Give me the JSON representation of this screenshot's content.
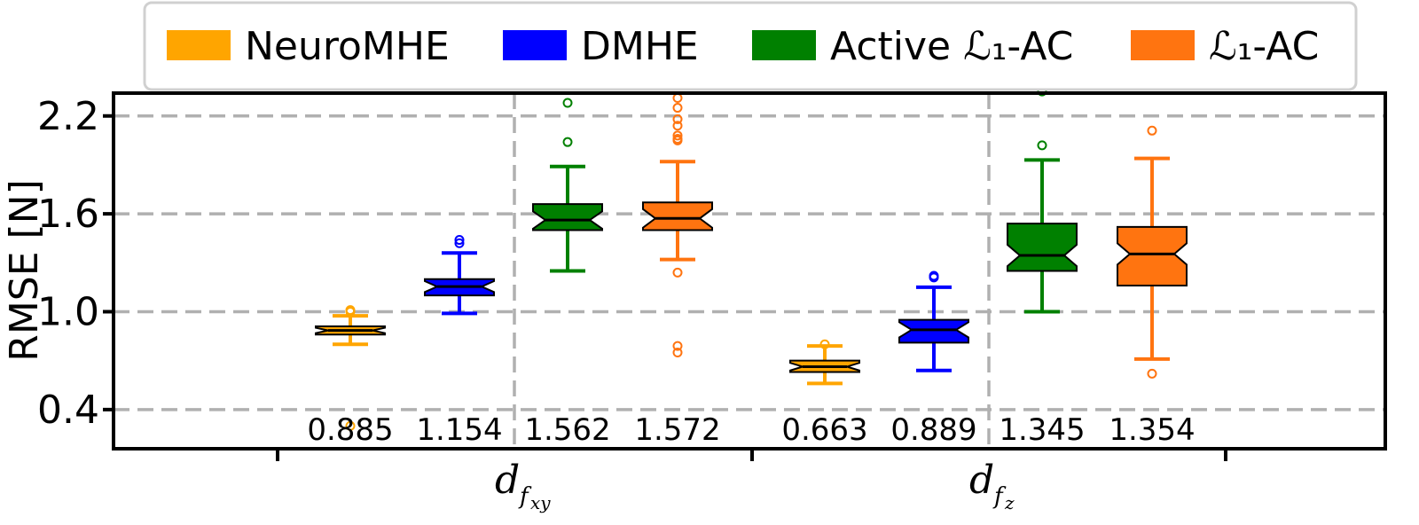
{
  "chart_data": {
    "type": "box",
    "title": "",
    "xlabel": "",
    "ylabel": "RMSE [N]",
    "ylim": [
      0.16,
      2.34
    ],
    "yticks": [
      0.4,
      1.0,
      1.6,
      2.2
    ],
    "ytick_labels": [
      "0.4",
      "1.0",
      "1.6",
      "2.2"
    ],
    "grid": true,
    "legend_position": "top",
    "categories": [
      {
        "main": "d",
        "sub": "f",
        "subsub": "xy"
      },
      {
        "main": "d",
        "sub": "f",
        "subsub": "z"
      }
    ],
    "legend": [
      {
        "name": "NeuroMHE",
        "color": "#FFA500"
      },
      {
        "name": "DMHE",
        "color": "#0000FF"
      },
      {
        "name": "Active ℒ₁-AC",
        "color": "#008000"
      },
      {
        "name": "ℒ₁-AC",
        "color": "#FF7410"
      }
    ],
    "series": [
      {
        "name": "NeuroMHE",
        "color": "#FFA500",
        "boxes": [
          {
            "whislo": 0.8,
            "q1": 0.86,
            "med": 0.885,
            "q3": 0.91,
            "whishi": 0.975,
            "fliers": [
              1.0,
              1.01,
              0.3
            ],
            "median_label": "0.885"
          },
          {
            "whislo": 0.56,
            "q1": 0.63,
            "med": 0.663,
            "q3": 0.7,
            "whishi": 0.79,
            "fliers": [
              0.8
            ],
            "median_label": "0.663"
          }
        ]
      },
      {
        "name": "DMHE",
        "color": "#0000FF",
        "boxes": [
          {
            "whislo": 0.99,
            "q1": 1.1,
            "med": 1.154,
            "q3": 1.2,
            "whishi": 1.36,
            "fliers": [
              1.42,
              1.44
            ],
            "median_label": "1.154"
          },
          {
            "whislo": 0.64,
            "q1": 0.81,
            "med": 0.889,
            "q3": 0.95,
            "whishi": 1.15,
            "fliers": [
              1.21,
              1.22
            ],
            "median_label": "0.889"
          }
        ]
      },
      {
        "name": "Active ℒ₁-AC",
        "color": "#008000",
        "boxes": [
          {
            "whislo": 1.25,
            "q1": 1.5,
            "med": 1.562,
            "q3": 1.66,
            "whishi": 1.89,
            "fliers": [
              2.04,
              2.28
            ],
            "median_label": "1.562"
          },
          {
            "whislo": 1.0,
            "q1": 1.25,
            "med": 1.345,
            "q3": 1.54,
            "whishi": 1.93,
            "fliers": [
              2.02,
              2.35
            ],
            "median_label": "1.345"
          }
        ]
      },
      {
        "name": "ℒ₁-AC",
        "color": "#FF7410",
        "boxes": [
          {
            "whislo": 1.32,
            "q1": 1.5,
            "med": 1.572,
            "q3": 1.67,
            "whishi": 1.92,
            "fliers": [
              1.24,
              0.79,
              0.75,
              2.05,
              2.06,
              2.08,
              2.14,
              2.18,
              2.25,
              2.31
            ],
            "median_label": "1.572"
          },
          {
            "whislo": 0.71,
            "q1": 1.16,
            "med": 1.354,
            "q3": 1.52,
            "whishi": 1.94,
            "fliers": [
              0.62,
              2.11
            ],
            "median_label": "1.354"
          }
        ]
      }
    ]
  }
}
